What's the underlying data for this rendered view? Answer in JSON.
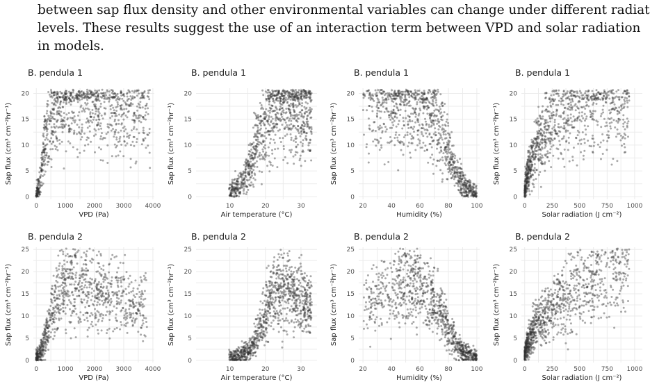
{
  "paragraph": {
    "lines": [
      "between sap flux density and other environmental variables can change under different radiation",
      "levels.  These results suggest the use of an interaction term between VPD and solar radiation",
      "in models."
    ]
  },
  "chart_data": [
    {
      "type": "scatter",
      "title": "B. pendula 1",
      "xlabel": "VPD (Pa)",
      "ylabel": "Sap flux (cm³ cm⁻²hr⁻¹)",
      "xlim": [
        -100,
        4050
      ],
      "ylim": [
        -0.5,
        21
      ],
      "xticks": [
        0,
        1000,
        2000,
        3000,
        4000
      ],
      "yticks": [
        0,
        5,
        10,
        15,
        20
      ],
      "grid": true,
      "legend": "none",
      "series": [
        {
          "x": [
            0,
            40,
            80,
            120,
            160,
            200,
            260,
            320,
            380,
            450,
            520,
            600,
            700,
            800,
            900,
            1000,
            1100,
            1200,
            1400,
            1600,
            1800,
            2000,
            2200,
            2500,
            2800,
            3100,
            3400,
            3700,
            3900
          ],
          "values": [
            0.8,
            1,
            1.5,
            2.5,
            4,
            6,
            9,
            11,
            13,
            14.5,
            15.5,
            16.5,
            17.3,
            17.8,
            18,
            18.3,
            18.5,
            18.4,
            18.3,
            18.2,
            18,
            17.8,
            17.6,
            17.4,
            17.2,
            17,
            16.9,
            16.8,
            16.6
          ]
        }
      ]
    },
    {
      "type": "scatter",
      "title": "B. pendula 1",
      "xlabel": "Air temperature (°C)",
      "ylabel": "Sap flux (cm³ cm⁻²hr⁻¹)",
      "xlim": [
        0.5,
        34.5
      ],
      "ylim": [
        -0.5,
        21
      ],
      "xticks": [
        10,
        20,
        30
      ],
      "yticks": [
        0,
        5,
        10,
        15,
        20
      ],
      "grid": true,
      "legend": "none",
      "series": [
        {
          "x": [
            2,
            4,
            6,
            8,
            10,
            11,
            12,
            13,
            14,
            15,
            16,
            17,
            18,
            19,
            20,
            21,
            22,
            23,
            24,
            25,
            26,
            27,
            28,
            30,
            32,
            33
          ],
          "values": [
            0.4,
            0.5,
            0.6,
            0.8,
            1,
            1.3,
            1.8,
            2.5,
            3.5,
            5,
            7,
            9,
            11,
            13,
            14.5,
            15.5,
            16.5,
            17.3,
            17.8,
            18,
            18,
            17.8,
            17.6,
            17.4,
            17.2,
            17
          ]
        }
      ]
    },
    {
      "type": "scatter",
      "title": "B. pendula 1",
      "xlabel": "Humidity (%)",
      "ylabel": "Sap flux (cm³ cm⁻²hr⁻¹)",
      "xlim": [
        17,
        102
      ],
      "ylim": [
        -0.5,
        21
      ],
      "xticks": [
        20,
        40,
        60,
        80,
        100
      ],
      "yticks": [
        0,
        5,
        10,
        15,
        20
      ],
      "grid": true,
      "legend": "none",
      "series": [
        {
          "x": [
            20,
            25,
            30,
            35,
            40,
            45,
            50,
            55,
            60,
            63,
            66,
            69,
            72,
            75,
            78,
            81,
            84,
            87,
            90,
            93,
            96,
            99,
            100
          ],
          "values": [
            17,
            17.3,
            17.5,
            17.7,
            17.8,
            17.9,
            17.9,
            17.8,
            17.6,
            17.3,
            16.7,
            15.8,
            14.5,
            12.8,
            10.5,
            8,
            5.5,
            3.5,
            2.3,
            1.7,
            1.2,
            0.8,
            0.6
          ]
        }
      ]
    },
    {
      "type": "scatter",
      "title": "B. pendula 1",
      "xlabel": "Solar radiation (J cm⁻²)",
      "ylabel": "Sap flux (cm³ cm⁻²hr⁻¹)",
      "xlim": [
        -30,
        1070
      ],
      "ylim": [
        -0.5,
        21
      ],
      "xticks": [
        0,
        250,
        500,
        750,
        1000
      ],
      "yticks": [
        0,
        5,
        10,
        15,
        20
      ],
      "grid": true,
      "legend": "none",
      "series": [
        {
          "x": [
            0,
            5,
            10,
            20,
            40,
            70,
            100,
            150,
            200,
            250,
            300,
            400,
            500,
            600,
            700,
            800,
            900,
            950
          ],
          "values": [
            1,
            2,
            2.8,
            3.8,
            5.5,
            7.5,
            9,
            11.5,
            13.3,
            14.5,
            15.5,
            16.6,
            17.2,
            17.6,
            17.9,
            18.1,
            18.3,
            18.4
          ]
        }
      ]
    },
    {
      "type": "scatter",
      "title": "B. pendula 2",
      "xlabel": "VPD (Pa)",
      "ylabel": "Sap flux (cm³ cm⁻²hr⁻¹)",
      "xlim": [
        -100,
        4050
      ],
      "ylim": [
        -0.5,
        25.5
      ],
      "xticks": [
        0,
        1000,
        2000,
        3000,
        4000
      ],
      "yticks": [
        0,
        5,
        10,
        15,
        20,
        25
      ],
      "grid": true,
      "legend": "none",
      "series": [
        {
          "x": [
            0,
            50,
            100,
            150,
            200,
            300,
            400,
            500,
            600,
            700,
            800,
            900,
            1000,
            1200,
            1400,
            1600,
            1800,
            2000,
            2300,
            2600,
            3000,
            3400,
            3800
          ],
          "values": [
            0.8,
            1,
            1.5,
            2,
            3,
            4.5,
            7,
            9.5,
            12,
            14,
            15.5,
            16.5,
            17.2,
            17.5,
            17.4,
            17,
            16.5,
            16,
            15.2,
            14.5,
            13.5,
            12.8,
            12.5
          ]
        }
      ]
    },
    {
      "type": "scatter",
      "title": "B. pendula 2",
      "xlabel": "Air temperature (°C)",
      "ylabel": "Sap flux (cm³ cm⁻²hr⁻¹)",
      "xlim": [
        0.5,
        34.5
      ],
      "ylim": [
        -0.5,
        25.5
      ],
      "xticks": [
        10,
        20,
        30
      ],
      "yticks": [
        0,
        5,
        10,
        15,
        20,
        25
      ],
      "grid": true,
      "legend": "none",
      "series": [
        {
          "x": [
            2,
            5,
            8,
            11,
            13,
            15,
            16,
            17,
            18,
            19,
            20,
            21,
            22,
            23,
            24,
            25,
            26,
            27,
            28,
            30,
            32,
            33
          ],
          "values": [
            0.3,
            0.4,
            0.5,
            0.8,
            1.2,
            2,
            3,
            4.5,
            6.5,
            9,
            11,
            13,
            14.5,
            15.5,
            16,
            16.2,
            16,
            15.5,
            15,
            14,
            13,
            12.5
          ]
        }
      ]
    },
    {
      "type": "scatter",
      "title": "B. pendula 2",
      "xlabel": "Humidity (%)",
      "ylabel": "Sap flux (cm³ cm⁻²hr⁻¹)",
      "xlim": [
        17,
        102
      ],
      "ylim": [
        -0.5,
        25.5
      ],
      "xticks": [
        20,
        40,
        60,
        80,
        100
      ],
      "yticks": [
        0,
        5,
        10,
        15,
        20,
        25
      ],
      "grid": true,
      "legend": "none",
      "series": [
        {
          "x": [
            20,
            25,
            30,
            35,
            40,
            45,
            50,
            55,
            60,
            63,
            66,
            69,
            72,
            75,
            78,
            81,
            84,
            87,
            90,
            95,
            100
          ],
          "values": [
            12.5,
            13,
            14,
            15.5,
            16.5,
            17.2,
            17.5,
            17.3,
            16.8,
            16,
            15,
            13.8,
            12.3,
            10.5,
            8.5,
            6.5,
            4.5,
            3,
            2,
            1.2,
            0.8
          ]
        }
      ]
    },
    {
      "type": "scatter",
      "title": "B. pendula 2",
      "xlabel": "Solar radiation (J cm⁻²)",
      "ylabel": "Sap flux (cm³ cm⁻²hr⁻¹)",
      "xlim": [
        -30,
        1070
      ],
      "ylim": [
        -0.5,
        25.5
      ],
      "xticks": [
        0,
        250,
        500,
        750,
        1000
      ],
      "yticks": [
        0,
        5,
        10,
        15,
        20,
        25
      ],
      "grid": true,
      "legend": "none",
      "series": [
        {
          "x": [
            0,
            10,
            30,
            60,
            100,
            150,
            200,
            250,
            300,
            400,
            500,
            600,
            700,
            800,
            900,
            950
          ],
          "values": [
            1,
            2.5,
            4,
            6,
            8,
            9.5,
            11,
            12.5,
            13.5,
            15,
            16.5,
            17.5,
            18.5,
            19.5,
            20.5,
            21
          ]
        }
      ]
    }
  ]
}
